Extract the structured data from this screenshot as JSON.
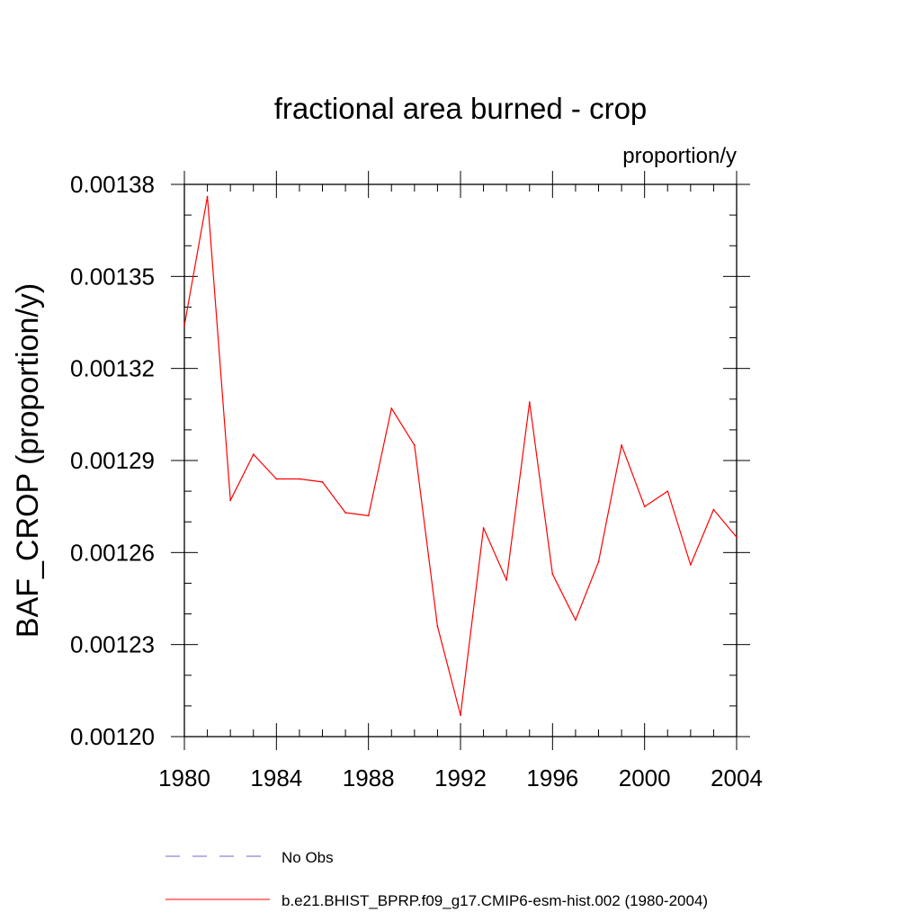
{
  "chart_data": {
    "type": "line",
    "title": "fractional area burned - crop",
    "units_label": "proportion/y",
    "ylabel": "BAF_CROP  (proportion/y)",
    "xlabel": "",
    "xlim": [
      1980,
      2004
    ],
    "ylim": [
      0.0012,
      0.00138
    ],
    "x_ticks": [
      "1980",
      "1984",
      "1988",
      "1992",
      "1996",
      "2000",
      "2004"
    ],
    "y_ticks": [
      "0.00120",
      "0.00123",
      "0.00126",
      "0.00129",
      "0.00132",
      "0.00135",
      "0.00138"
    ],
    "x": [
      1980,
      1981,
      1982,
      1983,
      1984,
      1985,
      1986,
      1987,
      1988,
      1989,
      1990,
      1991,
      1992,
      1993,
      1994,
      1995,
      1996,
      1997,
      1998,
      1999,
      2000,
      2001,
      2002,
      2003,
      2004
    ],
    "series": [
      {
        "name": "b.e21.BHIST_BPRP.f09_g17.CMIP6-esm-hist.002 (1980-2004)",
        "color": "#ff0000",
        "style": "solid",
        "values": [
          0.001334,
          0.001376,
          0.001277,
          0.001292,
          0.001284,
          0.001284,
          0.001283,
          0.001273,
          0.001272,
          0.001307,
          0.001295,
          0.001236,
          0.001207,
          0.001268,
          0.001251,
          0.001309,
          0.001253,
          0.001238,
          0.001257,
          0.001295,
          0.001275,
          0.00128,
          0.001256,
          0.001274,
          0.001265
        ]
      }
    ],
    "legend": [
      {
        "label": "No Obs",
        "color": "#6a6ac8",
        "style": "dashed"
      },
      {
        "label": "b.e21.BHIST_BPRP.f09_g17.CMIP6-esm-hist.002 (1980-2004)",
        "color": "#ff0000",
        "style": "solid"
      }
    ],
    "grid": false,
    "legend_position": "bottom"
  }
}
